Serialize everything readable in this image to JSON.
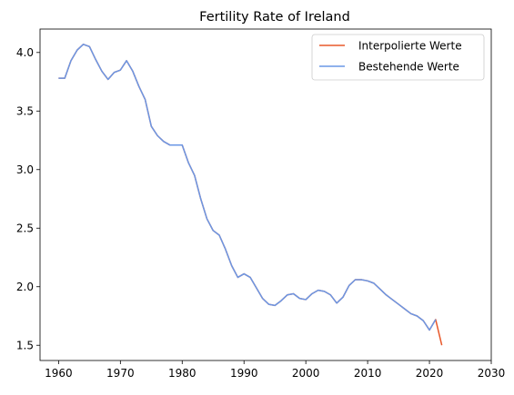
{
  "chart_data": {
    "type": "line",
    "title": "Fertility Rate of Ireland",
    "xlabel": "",
    "ylabel": "",
    "xlim": [
      1957,
      2030
    ],
    "ylim": [
      1.37,
      4.2
    ],
    "xticks": [
      1960,
      1970,
      1980,
      1990,
      2000,
      2010,
      2020,
      2030
    ],
    "yticks": [
      1.5,
      2.0,
      2.5,
      3.0,
      3.5,
      4.0
    ],
    "ytick_labels": [
      "1.5",
      "2.0",
      "2.5",
      "3.0",
      "3.5",
      "4.0"
    ],
    "grid": false,
    "legend_position": "top-right",
    "series": [
      {
        "name": "Interpolierte Werte",
        "color": "#e8582a",
        "x": [
          1960,
          1961,
          1962,
          1963,
          1964,
          1965,
          1966,
          1967,
          1968,
          1969,
          1970,
          1971,
          1972,
          1973,
          1974,
          1975,
          1976,
          1977,
          1978,
          1979,
          1980,
          1981,
          1982,
          1983,
          1984,
          1985,
          1986,
          1987,
          1988,
          1989,
          1990,
          1991,
          1992,
          1993,
          1994,
          1995,
          1996,
          1997,
          1998,
          1999,
          2000,
          2001,
          2002,
          2003,
          2004,
          2005,
          2006,
          2007,
          2008,
          2009,
          2010,
          2011,
          2012,
          2013,
          2014,
          2015,
          2016,
          2017,
          2018,
          2019,
          2020,
          2021,
          2022
        ],
        "y": [
          3.78,
          3.78,
          3.93,
          4.02,
          4.07,
          4.05,
          3.94,
          3.84,
          3.77,
          3.83,
          3.85,
          3.93,
          3.84,
          3.71,
          3.6,
          3.37,
          3.29,
          3.24,
          3.21,
          3.21,
          3.21,
          3.06,
          2.95,
          2.75,
          2.58,
          2.48,
          2.44,
          2.32,
          2.18,
          2.08,
          2.11,
          2.08,
          1.99,
          1.9,
          1.85,
          1.84,
          1.88,
          1.93,
          1.94,
          1.9,
          1.89,
          1.94,
          1.97,
          1.96,
          1.93,
          1.86,
          1.91,
          2.01,
          2.06,
          2.06,
          2.05,
          2.03,
          1.98,
          1.93,
          1.89,
          1.85,
          1.81,
          1.77,
          1.75,
          1.71,
          1.63,
          1.72,
          1.5
        ]
      },
      {
        "name": "Bestehende Werte",
        "color": "#6a97e6",
        "x": [
          1960,
          1961,
          1962,
          1963,
          1964,
          1965,
          1966,
          1967,
          1968,
          1969,
          1970,
          1971,
          1972,
          1973,
          1974,
          1975,
          1976,
          1977,
          1978,
          1979,
          1980,
          1981,
          1982,
          1983,
          1984,
          1985,
          1986,
          1987,
          1988,
          1989,
          1990,
          1991,
          1992,
          1993,
          1994,
          1995,
          1996,
          1997,
          1998,
          1999,
          2000,
          2001,
          2002,
          2003,
          2004,
          2005,
          2006,
          2007,
          2008,
          2009,
          2010,
          2011,
          2012,
          2013,
          2014,
          2015,
          2016,
          2017,
          2018,
          2019,
          2020,
          2021
        ],
        "y": [
          3.78,
          3.78,
          3.93,
          4.02,
          4.07,
          4.05,
          3.94,
          3.84,
          3.77,
          3.83,
          3.85,
          3.93,
          3.84,
          3.71,
          3.6,
          3.37,
          3.29,
          3.24,
          3.21,
          3.21,
          3.21,
          3.06,
          2.95,
          2.75,
          2.58,
          2.48,
          2.44,
          2.32,
          2.18,
          2.08,
          2.11,
          2.08,
          1.99,
          1.9,
          1.85,
          1.84,
          1.88,
          1.93,
          1.94,
          1.9,
          1.89,
          1.94,
          1.97,
          1.96,
          1.93,
          1.86,
          1.91,
          2.01,
          2.06,
          2.06,
          2.05,
          2.03,
          1.98,
          1.93,
          1.89,
          1.85,
          1.81,
          1.77,
          1.75,
          1.71,
          1.63,
          1.72
        ]
      }
    ]
  }
}
